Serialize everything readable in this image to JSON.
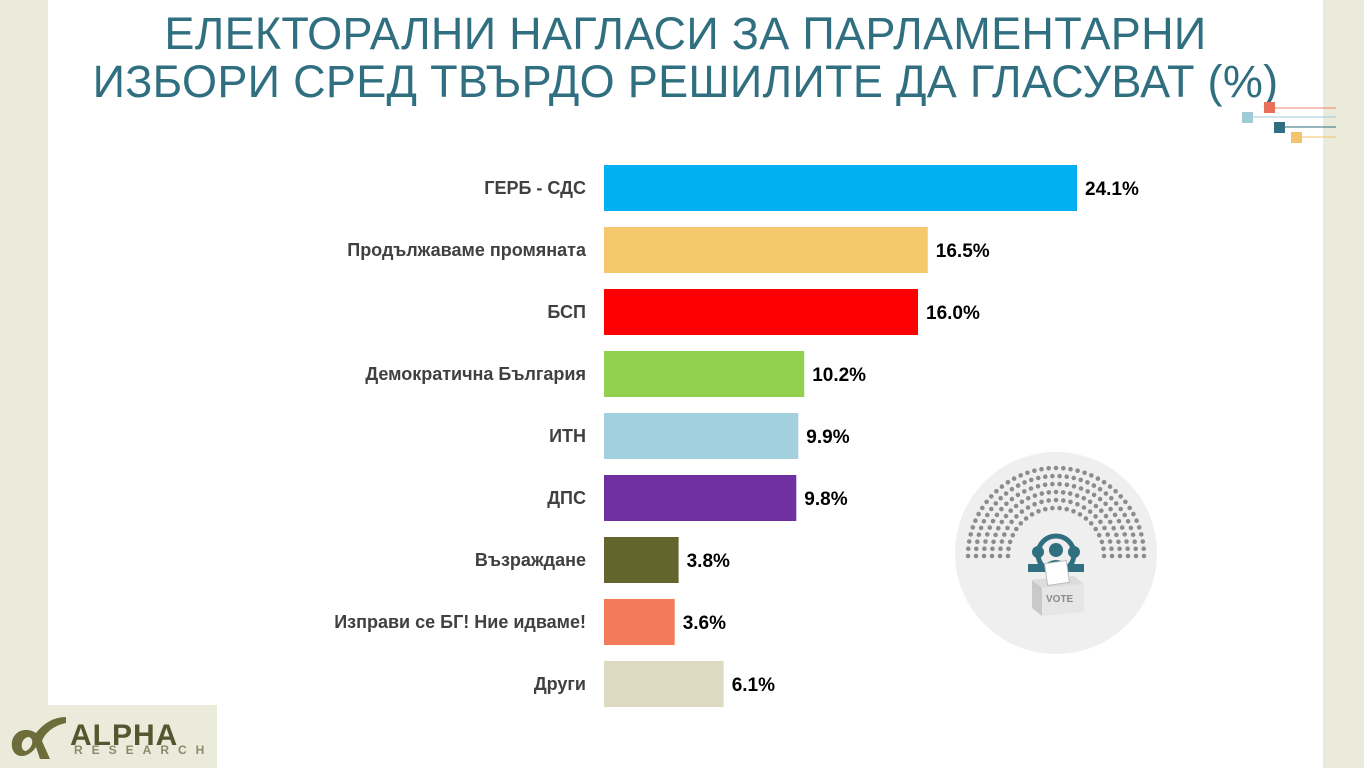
{
  "title": {
    "line1": "ЕЛЕКТОРАЛНИ НАГЛАСИ ЗА ПАРЛАМЕНТАРНИ",
    "line2": "ИЗБОРИ СРЕД ТВЪРДО РЕШИЛИТЕ ДА ГЛАСУВАТ (%)"
  },
  "chart_data": {
    "type": "bar",
    "orientation": "horizontal",
    "categories": [
      "ГЕРБ - СДС",
      "Продължаваме промяната",
      "БСП",
      "Демократична България",
      "ИТН",
      "ДПС",
      "Възраждане",
      "Изправи се БГ! Ние идваме!",
      "Други"
    ],
    "values": [
      24.1,
      16.5,
      16.0,
      10.2,
      9.9,
      9.8,
      3.8,
      3.6,
      6.1
    ],
    "value_labels": [
      "24.1%",
      "16.5%",
      "16.0%",
      "10.2%",
      "9.9%",
      "9.8%",
      "3.8%",
      "3.6%",
      "6.1%"
    ],
    "colors": [
      "#00b0f0",
      "#f6c86e",
      "#ff0000",
      "#92d050",
      "#a2d0df",
      "#7030a0",
      "#64642f",
      "#f37b5c",
      "#dcdac0"
    ],
    "xlim": [
      0,
      24.1
    ],
    "grid": false,
    "legend": "none"
  },
  "emblem": {
    "ballot_text": "VOTE"
  },
  "logo": {
    "word": "ALPHA",
    "sub": "RESEARCH",
    "registered": "®"
  },
  "colors": {
    "title": "#2f6f80",
    "page_background": "#ebebdc",
    "slide_background": "#ffffff"
  }
}
